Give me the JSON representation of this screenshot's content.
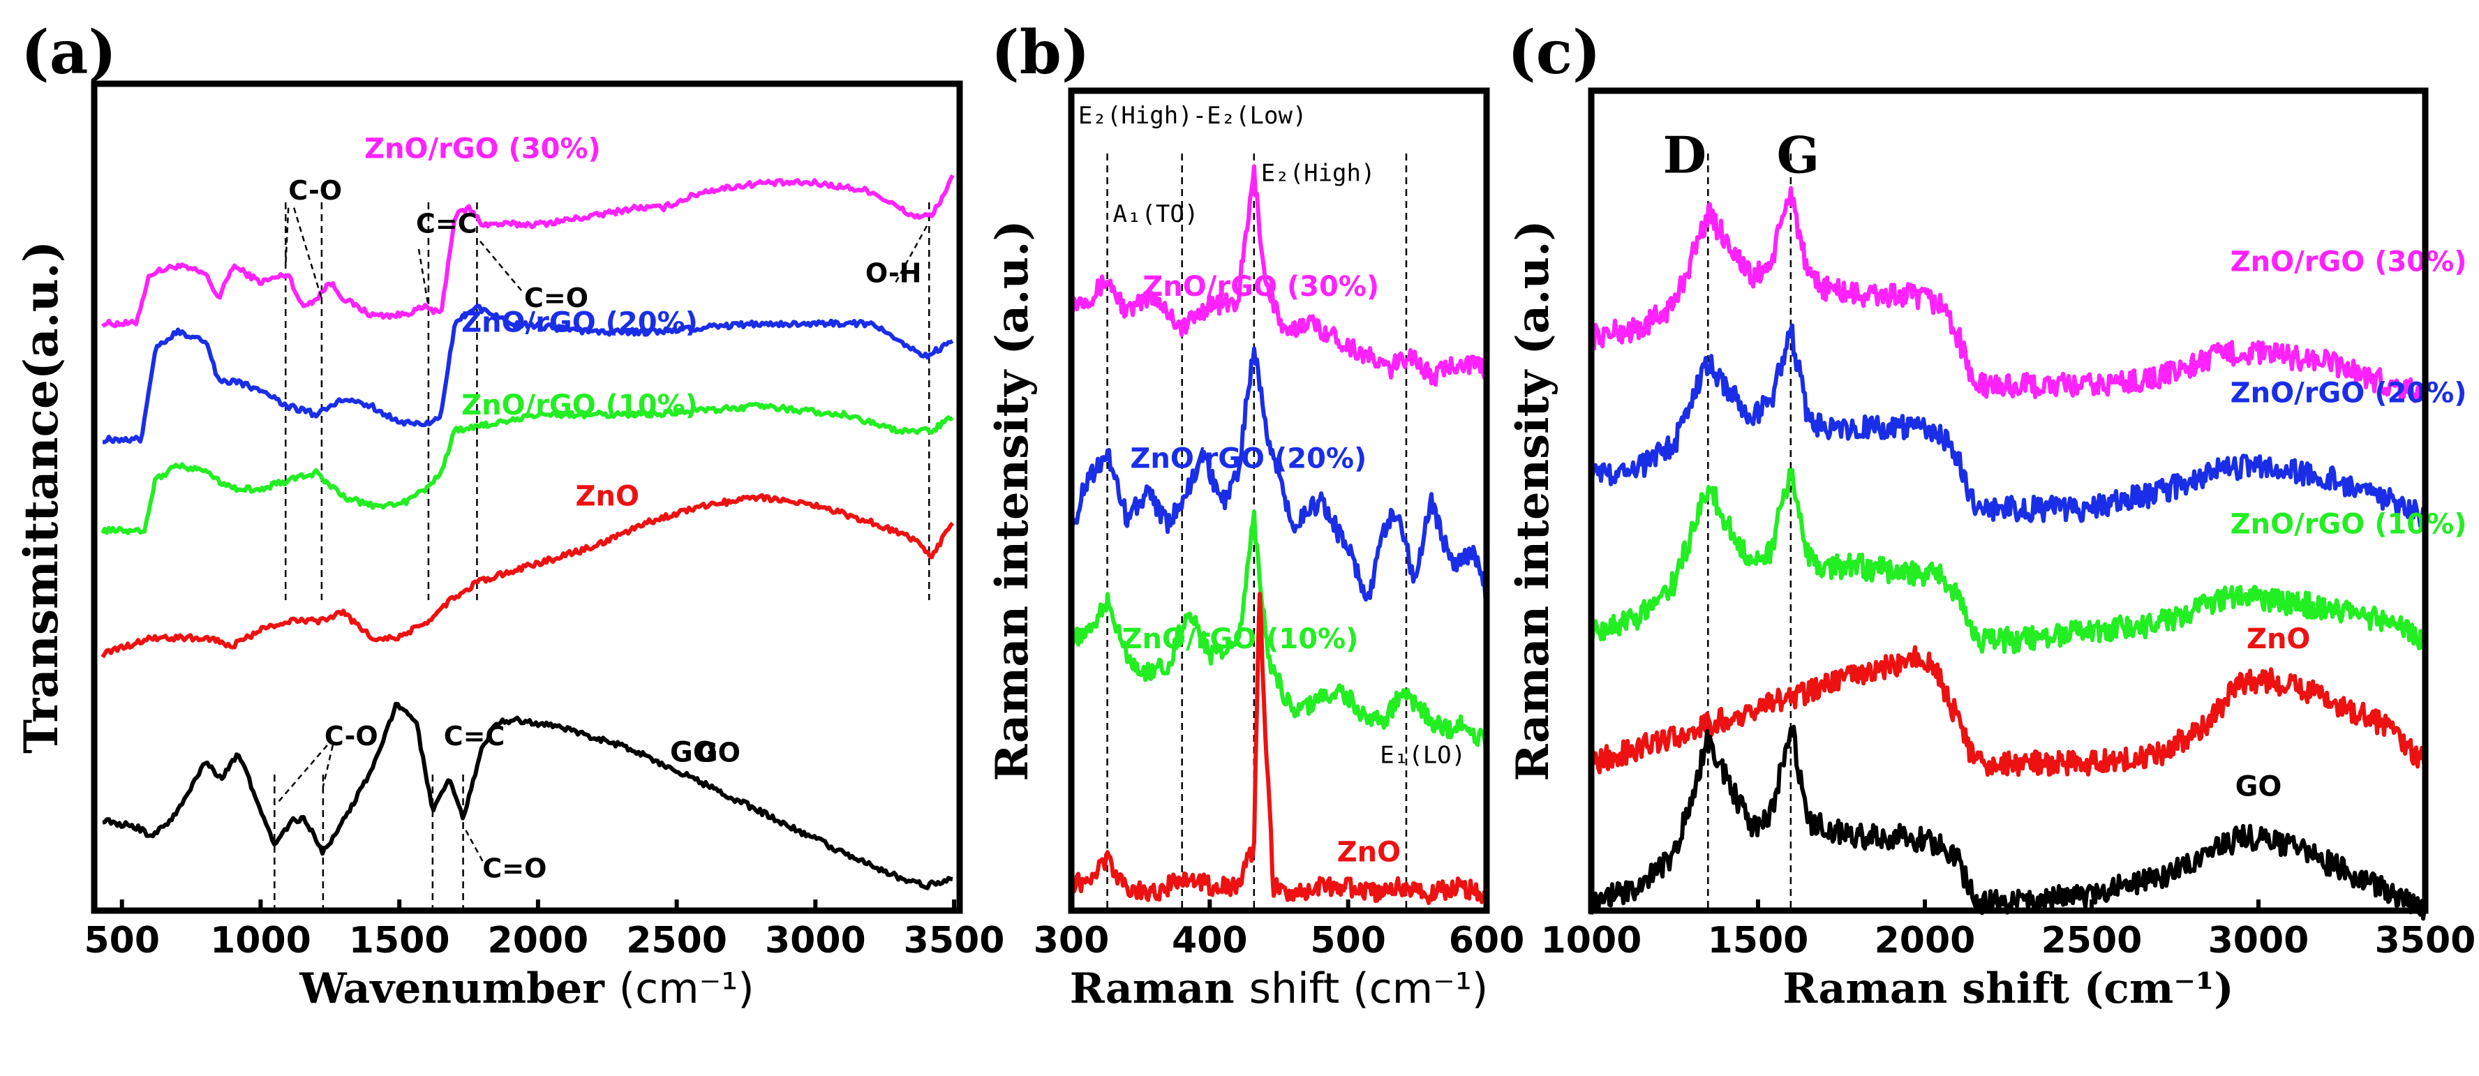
{
  "colors": {
    "magenta": "#ff22ff",
    "blue": "#1a2ee8",
    "green": "#22ee22",
    "red": "#ee1111",
    "black": "#000000"
  },
  "chart_data": [
    {
      "panel": "(a)",
      "type": "line",
      "xlabel_main": "Wavenumber",
      "xlabel_unit": "(cm⁻¹)",
      "ylabel": "Transmittance(a.u.)",
      "xlim": [
        400,
        3520
      ],
      "ylim": [
        0,
        100
      ],
      "xticks": [
        500,
        1000,
        1500,
        2000,
        2500,
        3000,
        3500
      ],
      "xtick_labels": [
        "500",
        "1000",
        "1500",
        "2000",
        "2500",
        "3000",
        "3500"
      ],
      "vlines": [
        1090,
        1220,
        1605,
        1780,
        3410
      ],
      "vlines_go": [
        1050,
        1225,
        1620,
        1730
      ],
      "annotations": [
        {
          "text": "C-O",
          "x": 1100,
          "y": 86
        },
        {
          "text": "C=C",
          "x": 1560,
          "y": 82
        },
        {
          "text": "C=O",
          "x": 1950,
          "y": 73
        },
        {
          "text": "O-H",
          "x": 3180,
          "y": 76
        },
        {
          "text": "C-O",
          "x": 1230,
          "y": 20
        },
        {
          "text": "C=C",
          "x": 1660,
          "y": 20
        },
        {
          "text": "C=O",
          "x": 1800,
          "y": 4
        },
        {
          "text": "GO",
          "x": 2570,
          "y": 18
        }
      ],
      "series": [
        {
          "name": "ZnO/rGO (30%)",
          "color": "#ff22ff",
          "label_x": 1800,
          "label_y": 91,
          "x": [
            430,
            550,
            600,
            700,
            800,
            850,
            900,
            1000,
            1100,
            1150,
            1200,
            1250,
            1300,
            1400,
            1500,
            1600,
            1650,
            1700,
            1750,
            1800,
            2000,
            2200,
            2350,
            2450,
            2600,
            2800,
            3000,
            3200,
            3350,
            3420,
            3500
          ],
          "y": [
            71,
            71,
            77,
            78,
            77,
            74,
            78,
            76,
            77,
            73,
            74,
            76,
            74,
            72,
            72,
            73,
            72,
            84,
            85,
            83,
            83,
            84,
            85,
            85,
            87,
            88,
            88,
            87,
            84,
            84,
            89
          ]
        },
        {
          "name": "ZnO/rGO (20%)",
          "color": "#1a2ee8",
          "label_x": 2150,
          "label_y": 70,
          "x": [
            430,
            570,
            620,
            700,
            800,
            850,
            900,
            1000,
            1100,
            1200,
            1300,
            1400,
            1500,
            1600,
            1650,
            1700,
            1780,
            1900,
            2200,
            2400,
            2800,
            3200,
            3400,
            3500
          ],
          "y": [
            57,
            57,
            68,
            70,
            69,
            64,
            64,
            63,
            61,
            60,
            62,
            61,
            59,
            59,
            60,
            71,
            73,
            71,
            70,
            70,
            71,
            71,
            67,
            69
          ]
        },
        {
          "name": "ZnO/rGO (10%)",
          "color": "#22ee22",
          "label_x": 2150,
          "label_y": 60,
          "x": [
            430,
            580,
            620,
            700,
            800,
            900,
            1000,
            1100,
            1200,
            1300,
            1400,
            1500,
            1600,
            1650,
            1700,
            2000,
            2400,
            2800,
            3100,
            3300,
            3420,
            3500
          ],
          "y": [
            46,
            46,
            52,
            54,
            53,
            51,
            51,
            52,
            53,
            50,
            49,
            49,
            51,
            53,
            58,
            60,
            60,
            61,
            60,
            58,
            58,
            60
          ]
        },
        {
          "name": "ZnO",
          "color": "#ee1111",
          "label_x": 2250,
          "label_y": 49,
          "x": [
            430,
            600,
            800,
            900,
            1000,
            1100,
            1200,
            1300,
            1400,
            1500,
            1600,
            1700,
            1800,
            2000,
            2200,
            2400,
            2600,
            2800,
            3000,
            3200,
            3350,
            3420,
            3500
          ],
          "y": [
            31,
            33,
            33,
            32,
            34,
            35,
            35,
            36,
            33,
            33,
            35,
            38,
            40,
            42,
            44,
            47,
            49,
            50,
            49,
            47,
            45,
            43,
            47
          ]
        },
        {
          "name": "GO",
          "color": "#000000",
          "label_x": 2560,
          "label_y": 18,
          "x": [
            430,
            560,
            600,
            650,
            720,
            800,
            860,
            920,
            980,
            1050,
            1120,
            1160,
            1225,
            1300,
            1400,
            1490,
            1560,
            1620,
            1680,
            1730,
            1800,
            1860,
            1950,
            2100,
            2300,
            2500,
            2800,
            3100,
            3300,
            3400,
            3500
          ],
          "y": [
            11,
            10,
            9,
            10,
            13,
            18,
            16,
            19,
            14,
            8,
            11,
            11,
            7,
            11,
            17,
            25,
            23,
            12,
            16,
            11,
            20,
            23,
            23,
            22,
            20,
            17,
            12,
            7,
            4,
            3,
            4
          ]
        }
      ]
    },
    {
      "panel": "(b)",
      "type": "line",
      "xlabel_main": "Raman",
      "xlabel_rest": "shift (cm⁻¹)",
      "ylabel": "Raman intensity (a.u.)",
      "xlim": [
        300,
        600
      ],
      "ylim": [
        0,
        100
      ],
      "xticks": [
        300,
        400,
        500,
        600
      ],
      "xtick_labels": [
        "300",
        "400",
        "500",
        "600"
      ],
      "vlines": [
        326,
        380,
        432,
        542
      ],
      "annotations": [
        {
          "text": "E₂(High)-E₂(Low)",
          "x": 305,
          "y": 96
        },
        {
          "text": "A₁(TO)",
          "x": 330,
          "y": 84
        },
        {
          "text": "E₂(High)",
          "x": 437,
          "y": 89
        },
        {
          "text": "E₁(LO)",
          "x": 523,
          "y": 18
        }
      ],
      "series": [
        {
          "name": "ZnO/rGO (30%)",
          "color": "#ff22ff",
          "label_x": 437,
          "label_y": 75,
          "x": [
            300,
            315,
            326,
            340,
            360,
            380,
            400,
            420,
            432,
            440,
            455,
            470,
            490,
            510,
            530,
            545,
            560,
            580,
            600
          ],
          "y": [
            74,
            75,
            77,
            73,
            75,
            71,
            74,
            74,
            90,
            77,
            70,
            72,
            70,
            68,
            66,
            68,
            65,
            67,
            66
          ]
        },
        {
          "name": "ZnO/rGO (20%)",
          "color": "#1a2ee8",
          "label_x": 428,
          "label_y": 54,
          "x": [
            300,
            310,
            326,
            340,
            355,
            370,
            380,
            395,
            410,
            420,
            432,
            442,
            460,
            480,
            500,
            515,
            525,
            535,
            548,
            560,
            575,
            590,
            600
          ],
          "y": [
            46,
            52,
            56,
            48,
            51,
            47,
            50,
            55,
            50,
            53,
            69,
            58,
            47,
            50,
            44,
            38,
            46,
            49,
            40,
            50,
            42,
            44,
            38
          ]
        },
        {
          "name": "ZnO/rGO (10%)",
          "color": "#22ee22",
          "label_x": 422,
          "label_y": 32,
          "x": [
            300,
            315,
            326,
            340,
            355,
            370,
            385,
            400,
            420,
            432,
            442,
            460,
            480,
            495,
            510,
            525,
            540,
            555,
            570,
            585,
            600
          ],
          "y": [
            33,
            34,
            38,
            31,
            29,
            30,
            37,
            31,
            32,
            48,
            31,
            24,
            26,
            27,
            24,
            23,
            27,
            24,
            22,
            23,
            20
          ]
        },
        {
          "name": "ZnO",
          "color": "#ee1111",
          "label_x": 515,
          "label_y": 6,
          "x": [
            300,
            315,
            326,
            340,
            360,
            380,
            400,
            420,
            432,
            436,
            440,
            446,
            460,
            480,
            500,
            520,
            540,
            560,
            580,
            600
          ],
          "y": [
            3,
            4,
            6,
            3,
            2,
            4,
            3,
            3,
            8,
            40,
            22,
            3,
            2,
            3,
            3,
            2,
            3,
            2,
            3,
            2
          ]
        }
      ]
    },
    {
      "panel": "(c)",
      "type": "line",
      "xlabel": "Raman shift (cm⁻¹)",
      "ylabel": "Raman intensity (a.u.)",
      "xlim": [
        1000,
        3500
      ],
      "ylim": [
        0,
        100
      ],
      "xticks": [
        1000,
        1500,
        2000,
        2500,
        3000,
        3500
      ],
      "xtick_labels": [
        "1000",
        "1500",
        "2000",
        "2500",
        "3000",
        "3500"
      ],
      "vlines": [
        1350,
        1598
      ],
      "peak_labels": [
        {
          "text": "D",
          "x": 1280,
          "y": 90
        },
        {
          "text": "G",
          "x": 1620,
          "y": 90
        }
      ],
      "series": [
        {
          "name": "ZnO/rGO (30%)",
          "color": "#ff22ff",
          "label_x": 3270,
          "label_y": 78,
          "x": [
            1000,
            1150,
            1250,
            1350,
            1420,
            1480,
            1540,
            1598,
            1650,
            1700,
            1800,
            1950,
            2050,
            2100,
            2150,
            2300,
            2500,
            2700,
            2900,
            3000,
            3200,
            3400,
            3500
          ],
          "y": [
            70,
            71,
            74,
            85,
            81,
            77,
            79,
            88,
            77,
            76,
            75,
            75,
            74,
            70,
            64,
            64,
            64,
            65,
            68,
            68,
            67,
            64,
            63
          ]
        },
        {
          "name": "ZnO/rGO (20%)",
          "color": "#1a2ee8",
          "label_x": 3270,
          "label_y": 62,
          "x": [
            1000,
            1150,
            1250,
            1350,
            1420,
            1480,
            1540,
            1598,
            1650,
            1700,
            1800,
            1950,
            2050,
            2100,
            2150,
            2300,
            2500,
            2700,
            2900,
            3000,
            3200,
            3400,
            3500
          ],
          "y": [
            53,
            54,
            57,
            67,
            63,
            60,
            62,
            71,
            60,
            59,
            59,
            59,
            58,
            55,
            49,
            49,
            49,
            51,
            54,
            54,
            53,
            50,
            48
          ]
        },
        {
          "name": "ZnO/rGO (10%)",
          "color": "#22ee22",
          "label_x": 3270,
          "label_y": 46,
          "x": [
            1000,
            1150,
            1250,
            1350,
            1420,
            1480,
            1540,
            1598,
            1650,
            1700,
            1800,
            1950,
            2050,
            2100,
            2150,
            2300,
            2500,
            2700,
            2900,
            3000,
            3200,
            3400,
            3500
          ],
          "y": [
            34,
            36,
            40,
            52,
            46,
            43,
            44,
            54,
            43,
            42,
            42,
            41,
            41,
            38,
            33,
            33,
            34,
            35,
            38,
            38,
            37,
            35,
            33
          ]
        },
        {
          "name": "ZnO",
          "color": "#ee1111",
          "label_x": 3060,
          "label_y": 32,
          "x": [
            1000,
            1150,
            1300,
            1450,
            1600,
            1750,
            1900,
            2000,
            2050,
            2100,
            2150,
            2300,
            2500,
            2700,
            2850,
            2950,
            3050,
            3200,
            3400,
            3500
          ],
          "y": [
            18,
            20,
            22,
            24,
            26,
            28,
            30,
            31,
            28,
            23,
            18,
            18,
            18,
            19,
            23,
            28,
            28,
            26,
            22,
            18
          ]
        },
        {
          "name": "GO",
          "color": "#000000",
          "label_x": 3000,
          "label_y": 14,
          "x": [
            1000,
            1150,
            1250,
            1350,
            1420,
            1480,
            1540,
            1598,
            1650,
            1700,
            1800,
            1950,
            2050,
            2100,
            2150,
            2300,
            2500,
            2700,
            2900,
            2950,
            3100,
            3300,
            3500
          ],
          "y": [
            1,
            3,
            7,
            21,
            15,
            10,
            12,
            23,
            11,
            10,
            9,
            9,
            8,
            6,
            1,
            1,
            2,
            4,
            8,
            9,
            8,
            4,
            0
          ]
        }
      ]
    }
  ]
}
